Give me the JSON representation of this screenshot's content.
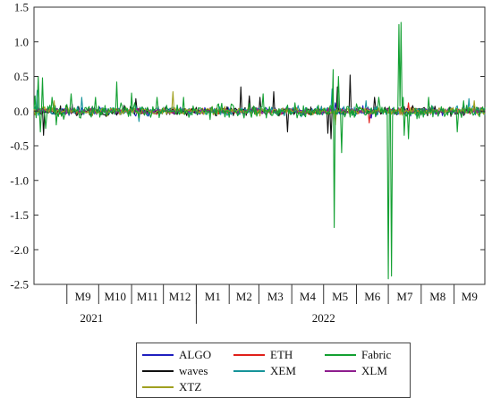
{
  "chart_data": {
    "type": "line",
    "title": "",
    "xlabel": "",
    "ylabel": "",
    "ylim": [
      -2.5,
      1.5
    ],
    "yticks": [
      "1.5",
      "1.0",
      "0.5",
      "0.0",
      "-0.5",
      "-1.0",
      "-1.5",
      "-2.0",
      "-2.5"
    ],
    "ytick_values": [
      1.5,
      1.0,
      0.5,
      0.0,
      -0.5,
      -1.0,
      -1.5,
      -2.0,
      -2.5
    ],
    "xlim": [
      "2021-08-01",
      "2022-09-30"
    ],
    "month_ticks": [
      "M9",
      "M10",
      "M11",
      "M12",
      "M1",
      "M2",
      "M3",
      "M4",
      "M5",
      "M6",
      "M7",
      "M8",
      "M9"
    ],
    "month_starts": [
      "2021-09-01",
      "2021-10-01",
      "2021-11-01",
      "2021-12-01",
      "2022-01-01",
      "2022-02-01",
      "2022-03-01",
      "2022-04-01",
      "2022-05-01",
      "2022-06-01",
      "2022-07-01",
      "2022-08-01",
      "2022-09-01"
    ],
    "years": [
      "2021",
      "2022"
    ],
    "year_label_months": [
      "2021-10-01",
      "2022-05-01"
    ],
    "grid": false,
    "legend_position": "bottom-center",
    "series": [
      {
        "name": "ALGO",
        "color": "#1f1fbf",
        "noise": 0.05,
        "spikes": [
          [
            "2022-05-12",
            0.12
          ],
          [
            "2022-06-15",
            -0.1
          ],
          [
            "2022-09-10",
            0.1
          ]
        ]
      },
      {
        "name": "ETH",
        "color": "#e0201a",
        "noise": 0.04,
        "spikes": [
          [
            "2022-05-12",
            -0.15
          ],
          [
            "2022-06-13",
            -0.17
          ],
          [
            "2022-07-20",
            0.12
          ]
        ]
      },
      {
        "name": "Fabric",
        "color": "#13a032",
        "noise": 0.09,
        "spikes": [
          [
            "2021-08-02",
            0.22
          ],
          [
            "2021-08-05",
            0.5
          ],
          [
            "2021-08-07",
            -0.3
          ],
          [
            "2021-08-09",
            0.48
          ],
          [
            "2021-08-12",
            -0.25
          ],
          [
            "2021-08-18",
            0.2
          ],
          [
            "2021-08-22",
            -0.2
          ],
          [
            "2021-09-05",
            0.25
          ],
          [
            "2021-09-28",
            0.2
          ],
          [
            "2021-10-18",
            0.42
          ],
          [
            "2021-11-01",
            0.26
          ],
          [
            "2021-11-25",
            0.2
          ],
          [
            "2021-12-20",
            0.2
          ],
          [
            "2022-03-05",
            0.25
          ],
          [
            "2022-05-10",
            0.6
          ],
          [
            "2022-05-11",
            -1.68
          ],
          [
            "2022-05-15",
            0.5
          ],
          [
            "2022-05-18",
            -0.6
          ],
          [
            "2022-06-22",
            0.2
          ],
          [
            "2022-07-01",
            -2.42
          ],
          [
            "2022-07-04",
            -2.38
          ],
          [
            "2022-07-11",
            1.25
          ],
          [
            "2022-07-13",
            1.28
          ],
          [
            "2022-07-15",
            0.2
          ],
          [
            "2022-07-16",
            -0.35
          ],
          [
            "2022-07-20",
            -0.4
          ],
          [
            "2022-08-08",
            0.2
          ],
          [
            "2022-09-04",
            -0.3
          ],
          [
            "2022-09-10",
            0.15
          ]
        ]
      },
      {
        "name": "waves",
        "color": "#111111",
        "noise": 0.06,
        "spikes": [
          [
            "2021-08-10",
            -0.35
          ],
          [
            "2021-11-05",
            0.18
          ],
          [
            "2022-02-12",
            0.35
          ],
          [
            "2022-02-20",
            0.22
          ],
          [
            "2022-03-02",
            0.2
          ],
          [
            "2022-03-15",
            0.28
          ],
          [
            "2022-03-28",
            -0.3
          ],
          [
            "2022-05-05",
            -0.32
          ],
          [
            "2022-05-08",
            -0.4
          ],
          [
            "2022-05-14",
            0.35
          ],
          [
            "2022-05-26",
            0.52
          ],
          [
            "2022-06-18",
            0.2
          ]
        ]
      },
      {
        "name": "XEM",
        "color": "#16949a",
        "noise": 0.06,
        "spikes": [
          [
            "2021-08-04",
            0.3
          ],
          [
            "2021-09-15",
            0.2
          ],
          [
            "2021-11-08",
            -0.15
          ],
          [
            "2022-05-09",
            0.32
          ],
          [
            "2022-06-10",
            0.15
          ],
          [
            "2022-09-15",
            0.18
          ]
        ]
      },
      {
        "name": "XLM",
        "color": "#8e1d8e",
        "noise": 0.04,
        "spikes": [
          [
            "2021-09-06",
            0.1
          ],
          [
            "2022-05-12",
            -0.12
          ],
          [
            "2022-06-14",
            -0.1
          ]
        ]
      },
      {
        "name": "XTZ",
        "color": "#a0a020",
        "noise": 0.05,
        "spikes": [
          [
            "2021-12-10",
            0.28
          ],
          [
            "2021-08-20",
            0.15
          ],
          [
            "2022-05-12",
            -0.2
          ],
          [
            "2022-09-20",
            0.15
          ]
        ]
      }
    ]
  }
}
